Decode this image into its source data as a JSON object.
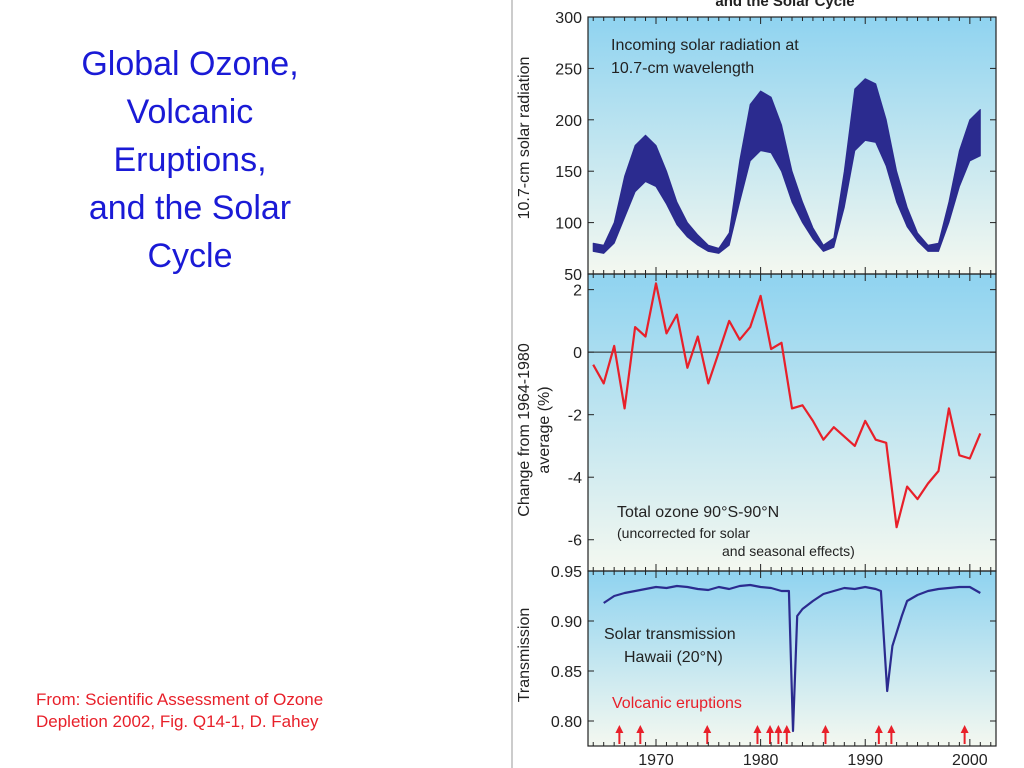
{
  "slide": {
    "title": "Global Ozone,\nVolcanic\nEruptions,\nand the Solar\nCycle",
    "source": "From: Scientific Assessment of Ozone\nDepletion 2002, Fig. Q14-1, D. Fahey",
    "figure_title": "and the Solar Cycle"
  },
  "colors": {
    "title_blue": "#1a1ad6",
    "source_red": "#e8202a",
    "solar_band": "#2b2b8f",
    "ozone_line": "#e8202a",
    "transmission_line": "#2b2b8f",
    "arrow_red": "#e8202a",
    "panel_bg_top": "#8fd3f0",
    "panel_bg_bottom": "#f4f8f0"
  },
  "x_axis": {
    "xlim": [
      1963.5,
      2002.5
    ],
    "ticks": [
      1970,
      1980,
      1990,
      2000
    ],
    "tick_labels": [
      "1970",
      "1980",
      "1990",
      "2000"
    ]
  },
  "chart_data": [
    {
      "type": "area",
      "panel": "solar",
      "annotation": "Incoming solar radiation at\n10.7-cm wavelength",
      "ylabel": "10.7-cm solar radiation",
      "ylim": [
        50,
        300
      ],
      "yticks": [
        50,
        100,
        150,
        200,
        250,
        300
      ],
      "grid": false,
      "series": [
        {
          "x": [
            1964,
            1965,
            1966,
            1967,
            1968,
            1969,
            1970,
            1971,
            1972,
            1973,
            1974,
            1975,
            1976,
            1977,
            1978,
            1979,
            1980,
            1981,
            1982,
            1983,
            1984,
            1985,
            1986,
            1987,
            1988,
            1989,
            1990,
            1991,
            1992,
            1993,
            1994,
            1995,
            1996,
            1997,
            1998,
            1999,
            2000,
            2001
          ],
          "upper": [
            80,
            78,
            100,
            145,
            175,
            185,
            175,
            150,
            120,
            100,
            88,
            78,
            75,
            90,
            160,
            215,
            228,
            222,
            195,
            150,
            120,
            95,
            78,
            85,
            150,
            230,
            240,
            235,
            200,
            150,
            115,
            90,
            78,
            80,
            120,
            170,
            200,
            210
          ],
          "lower": [
            72,
            70,
            80,
            105,
            130,
            140,
            135,
            118,
            98,
            86,
            78,
            72,
            70,
            78,
            120,
            160,
            170,
            168,
            150,
            120,
            100,
            84,
            72,
            76,
            115,
            170,
            180,
            178,
            155,
            120,
            96,
            82,
            72,
            72,
            100,
            135,
            160,
            165
          ]
        }
      ]
    },
    {
      "type": "line",
      "panel": "ozone",
      "annotation": "Total ozone 90°S-90°N",
      "annotation_note_1": "(uncorrected for solar",
      "annotation_note_2": "and seasonal effects)",
      "ylabel": "Change from 1964-1980\naverage (%)",
      "ylim": [
        -7,
        2.5
      ],
      "yticks": [
        -6,
        -4,
        -2,
        0,
        2
      ],
      "zero_line": true,
      "grid": false,
      "series": [
        {
          "x": [
            1964,
            1965,
            1966,
            1967,
            1968,
            1969,
            1970,
            1971,
            1972,
            1973,
            1974,
            1975,
            1976,
            1977,
            1978,
            1979,
            1980,
            1981,
            1982,
            1983,
            1984,
            1985,
            1986,
            1987,
            1988,
            1989,
            1990,
            1991,
            1992,
            1993,
            1994,
            1995,
            1996,
            1997,
            1998,
            1999,
            2000,
            2001
          ],
          "values": [
            -0.4,
            -1.0,
            0.2,
            -1.8,
            0.8,
            0.5,
            2.2,
            0.6,
            1.2,
            -0.5,
            0.5,
            -1.0,
            0.0,
            1.0,
            0.4,
            0.8,
            1.8,
            0.1,
            0.3,
            -1.8,
            -1.7,
            -2.2,
            -2.8,
            -2.4,
            -2.7,
            -3.0,
            -2.2,
            -2.8,
            -2.9,
            -5.6,
            -4.3,
            -4.7,
            -4.2,
            -3.8,
            -1.8,
            -3.3,
            -3.4,
            -2.6
          ]
        }
      ]
    },
    {
      "type": "line",
      "panel": "transmission",
      "annotation": "Solar transmission\nHawaii (20°N)",
      "volcano_label": "Volcanic eruptions",
      "ylabel": "Transmission",
      "ylim": [
        0.775,
        0.95
      ],
      "yticks": [
        0.8,
        0.85,
        0.9,
        0.95
      ],
      "grid": false,
      "series": [
        {
          "x": [
            1965,
            1966,
            1967,
            1968,
            1969,
            1970,
            1971,
            1972,
            1973,
            1974,
            1975,
            1976,
            1977,
            1978,
            1979,
            1980,
            1981,
            1982,
            1982.7,
            1983.1,
            1983.5,
            1984,
            1985,
            1986,
            1987,
            1988,
            1989,
            1990,
            1991,
            1991.5,
            1992.1,
            1992.6,
            1993.5,
            1994,
            1995,
            1996,
            1997,
            1998,
            1999,
            2000,
            2001
          ],
          "values": [
            0.918,
            0.925,
            0.928,
            0.93,
            0.932,
            0.934,
            0.933,
            0.935,
            0.934,
            0.932,
            0.931,
            0.934,
            0.932,
            0.935,
            0.936,
            0.934,
            0.933,
            0.93,
            0.93,
            0.79,
            0.905,
            0.912,
            0.92,
            0.927,
            0.93,
            0.933,
            0.932,
            0.934,
            0.932,
            0.93,
            0.83,
            0.875,
            0.905,
            0.92,
            0.926,
            0.93,
            0.932,
            0.933,
            0.934,
            0.934,
            0.928
          ]
        }
      ],
      "volcanic_eruption_years": [
        1966.5,
        1968.5,
        1974.9,
        1979.7,
        1980.9,
        1981.7,
        1982.5,
        1986.2,
        1991.3,
        1992.5,
        1999.5
      ]
    }
  ]
}
